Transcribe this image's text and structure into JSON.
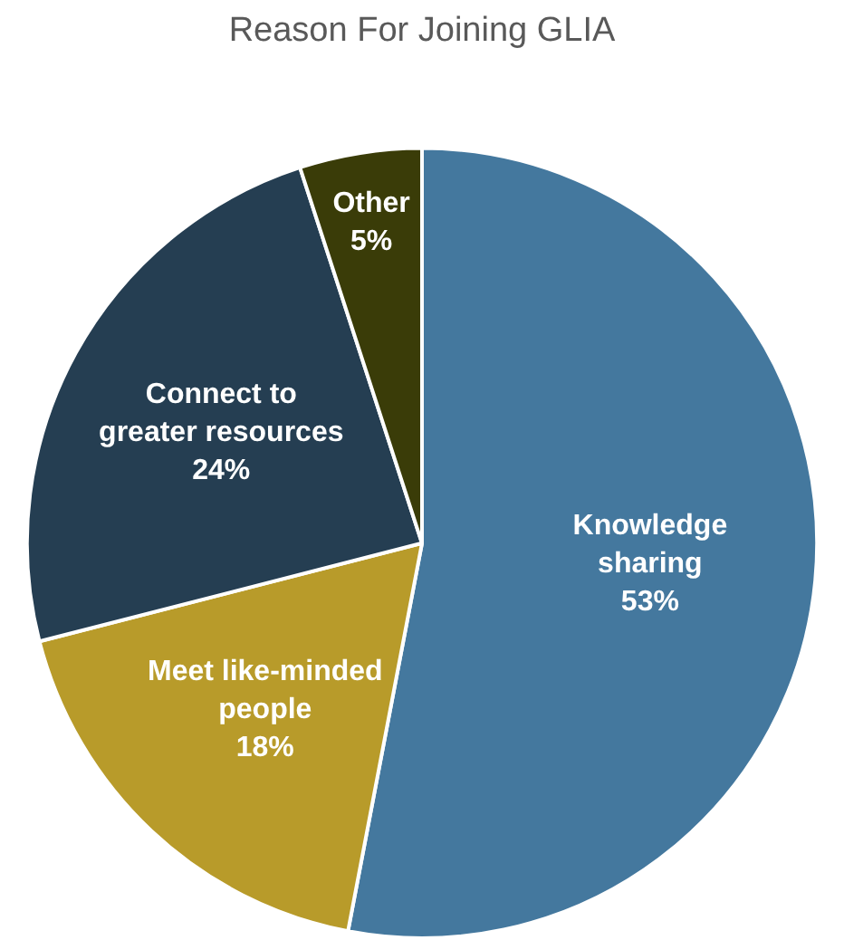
{
  "chart_data": {
    "type": "pie",
    "title": "Reason For Joining GLIA",
    "categories": [
      "Knowledge\nsharing",
      "Meet like-minded\npeople",
      "Connect to\ngreater resources",
      "Other"
    ],
    "values": [
      53,
      18,
      24,
      5
    ],
    "colors": [
      "#44789e",
      "#b89b2a",
      "#253e52",
      "#3a3c08"
    ],
    "value_labels": [
      "53%",
      "18%",
      "24%",
      "5%"
    ],
    "legend": false
  }
}
